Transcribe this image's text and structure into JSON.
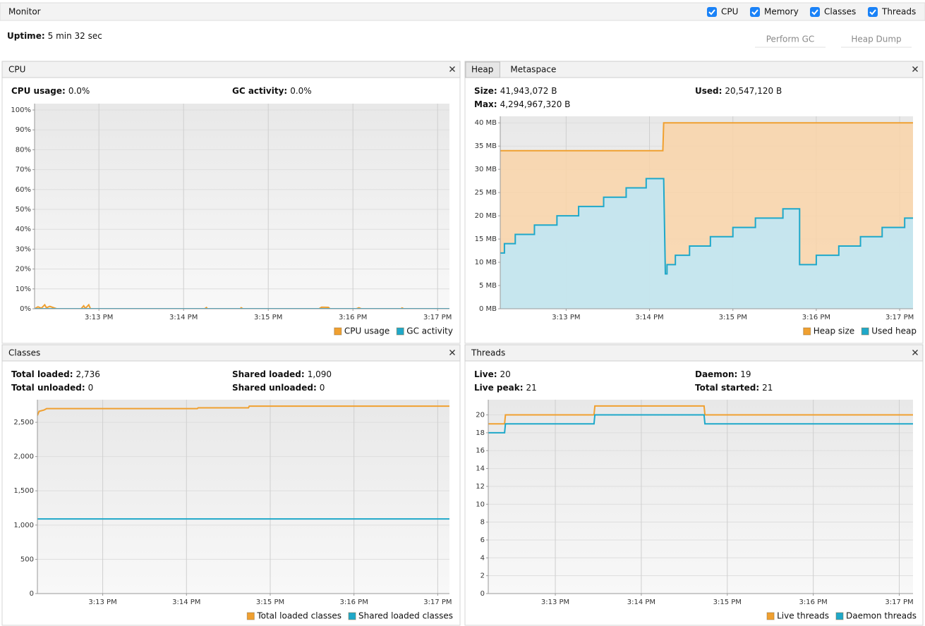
{
  "header": {
    "title": "Monitor",
    "checkboxes": [
      "CPU",
      "Memory",
      "Classes",
      "Threads"
    ],
    "uptime_label": "Uptime:",
    "uptime": "5 min 32 sec",
    "buttons": [
      "Perform GC",
      "Heap Dump"
    ]
  },
  "chart_data": [
    {
      "type": "line",
      "title": "CPU",
      "stats": [
        {
          "label": "CPU usage:",
          "value": "0.0%"
        },
        {
          "label": "GC activity:",
          "value": "0.0%"
        }
      ],
      "xlim": [
        12.24,
        17.14
      ],
      "xticks": [
        {
          "value": 13,
          "label": "3:13 PM"
        },
        {
          "value": 14,
          "label": "3:14 PM"
        },
        {
          "value": 15,
          "label": "3:15 PM"
        },
        {
          "value": 16,
          "label": "3:16 PM"
        },
        {
          "value": 17,
          "label": "3:17 PM"
        }
      ],
      "ylim": [
        0,
        103.2
      ],
      "yticks": [
        {
          "value": 0,
          "label": "0%"
        },
        {
          "value": 10,
          "label": "10%"
        },
        {
          "value": 20,
          "label": "20%"
        },
        {
          "value": 30,
          "label": "30%"
        },
        {
          "value": 40,
          "label": "40%"
        },
        {
          "value": 50,
          "label": "50%"
        },
        {
          "value": 60,
          "label": "60%"
        },
        {
          "value": 70,
          "label": "70%"
        },
        {
          "value": 80,
          "label": "80%"
        },
        {
          "value": 90,
          "label": "90%"
        },
        {
          "value": 100,
          "label": "100%"
        }
      ],
      "grid": true,
      "series": [
        {
          "name": "CPU usage",
          "color": "#f0a030",
          "x": [
            12.24,
            12.28,
            12.32,
            12.36,
            12.38,
            12.42,
            12.5,
            12.79,
            12.82,
            12.84,
            12.88,
            12.9,
            14.25,
            14.27,
            14.28,
            14.67,
            14.68,
            14.7,
            15.6,
            15.63,
            15.71,
            15.73,
            16.04,
            16.07,
            16.1,
            16.57,
            16.58,
            16.6,
            17.14
          ],
          "values": [
            0,
            1,
            0.3,
            2,
            0.5,
            1.2,
            0,
            0,
            1.5,
            0.2,
            2,
            0,
            0,
            0.6,
            0,
            0,
            0.5,
            0,
            0,
            0.8,
            0.7,
            0,
            0,
            0.5,
            0,
            0,
            0.4,
            0,
            0
          ]
        },
        {
          "name": "GC activity",
          "color": "#1fa8c9",
          "x": [
            12.24,
            17.14
          ],
          "values": [
            0,
            0
          ]
        }
      ]
    },
    {
      "type": "area",
      "tabs": [
        "Heap",
        "Metaspace"
      ],
      "stats": [
        {
          "label": "Size:",
          "value": "41,943,072 B"
        },
        {
          "label": "Used:",
          "value": "20,547,120 B"
        },
        {
          "label": "Max:",
          "value": "4,294,967,320 B"
        }
      ],
      "xlim": [
        12.21,
        17.16
      ],
      "xticks": [
        {
          "value": 13,
          "label": "3:13 PM"
        },
        {
          "value": 14,
          "label": "3:14 PM"
        },
        {
          "value": 15,
          "label": "3:15 PM"
        },
        {
          "value": 16,
          "label": "3:16 PM"
        },
        {
          "value": 17,
          "label": "3:17 PM"
        }
      ],
      "ylim": [
        0,
        41.4
      ],
      "yticks": [
        {
          "value": 0,
          "label": "0 MB"
        },
        {
          "value": 5,
          "label": "5 MB"
        },
        {
          "value": 10,
          "label": "10 MB"
        },
        {
          "value": 15,
          "label": "15 MB"
        },
        {
          "value": 20,
          "label": "20 MB"
        },
        {
          "value": 25,
          "label": "25 MB"
        },
        {
          "value": 30,
          "label": "30 MB"
        },
        {
          "value": 35,
          "label": "35 MB"
        },
        {
          "value": 40,
          "label": "40 MB"
        }
      ],
      "grid": true,
      "series": [
        {
          "name": "Heap size",
          "color": "#f0a030",
          "fill_color": "#f9d3a8",
          "x": [
            12.21,
            14.16,
            14.17,
            17.16
          ],
          "values": [
            34,
            34,
            40,
            40
          ]
        },
        {
          "name": "Used heap",
          "color": "#1fa8c9",
          "fill_color": "#bde8f8",
          "x": [
            12.21,
            12.26,
            12.26,
            12.39,
            12.39,
            12.62,
            12.62,
            12.89,
            12.89,
            13.15,
            13.15,
            13.45,
            13.45,
            13.72,
            13.72,
            13.96,
            13.96,
            14.17,
            14.19,
            14.21,
            14.21,
            14.31,
            14.31,
            14.48,
            14.48,
            14.73,
            14.73,
            15.0,
            15.0,
            15.27,
            15.27,
            15.6,
            15.6,
            15.8,
            15.8,
            16.0,
            16.0,
            16.27,
            16.27,
            16.53,
            16.53,
            16.79,
            16.79,
            17.06,
            17.06,
            17.16
          ],
          "values": [
            12,
            12,
            14,
            14,
            16,
            16,
            18,
            18,
            20,
            20,
            22,
            22,
            24,
            24,
            26,
            26,
            28,
            28,
            7.5,
            7.5,
            9.5,
            9.5,
            11.5,
            11.5,
            13.5,
            13.5,
            15.5,
            15.5,
            17.5,
            17.5,
            19.5,
            19.5,
            21.5,
            21.5,
            9.5,
            9.5,
            11.5,
            11.5,
            13.5,
            13.5,
            15.5,
            15.5,
            17.5,
            17.5,
            19.5,
            19.5
          ]
        }
      ]
    },
    {
      "type": "line",
      "title": "Classes",
      "stats": [
        {
          "label": "Total loaded:",
          "value": "2,736"
        },
        {
          "label": "Shared loaded:",
          "value": "1,090"
        },
        {
          "label": "Total unloaded:",
          "value": "0"
        },
        {
          "label": "Shared unloaded:",
          "value": "0"
        }
      ],
      "xlim": [
        12.22,
        17.14
      ],
      "xticks": [
        {
          "value": 13,
          "label": "3:13 PM"
        },
        {
          "value": 14,
          "label": "3:14 PM"
        },
        {
          "value": 15,
          "label": "3:15 PM"
        },
        {
          "value": 16,
          "label": "3:16 PM"
        },
        {
          "value": 17,
          "label": "3:17 PM"
        }
      ],
      "ylim": [
        0,
        2830
      ],
      "yticks": [
        0,
        500,
        {
          "value": 1000,
          "label": "1,000"
        },
        {
          "value": 1500,
          "label": "1,500"
        },
        {
          "value": 2000,
          "label": "2,000"
        },
        {
          "value": 2500,
          "label": "2,500"
        }
      ],
      "grid": true,
      "series": [
        {
          "name": "Total loaded classes",
          "color": "#f0a030",
          "x": [
            12.22,
            12.24,
            12.3,
            12.33,
            14.13,
            14.14,
            14.74,
            14.75,
            17.14
          ],
          "values": [
            2600,
            2660,
            2680,
            2700,
            2700,
            2712,
            2712,
            2736,
            2736
          ]
        },
        {
          "name": "Shared loaded classes",
          "color": "#1fa8c9",
          "x": [
            12.22,
            17.14
          ],
          "values": [
            1090,
            1090
          ]
        }
      ]
    },
    {
      "type": "line",
      "title": "Threads",
      "stats": [
        {
          "label": "Live:",
          "value": "20"
        },
        {
          "label": "Daemon:",
          "value": "19"
        },
        {
          "label": "Live peak:",
          "value": "21"
        },
        {
          "label": "Total started:",
          "value": "21"
        }
      ],
      "xlim": [
        12.22,
        17.16
      ],
      "xticks": [
        {
          "value": 13,
          "label": "3:13 PM"
        },
        {
          "value": 14,
          "label": "3:14 PM"
        },
        {
          "value": 15,
          "label": "3:15 PM"
        },
        {
          "value": 16,
          "label": "3:16 PM"
        },
        {
          "value": 17,
          "label": "3:17 PM"
        }
      ],
      "ylim": [
        0,
        21.7
      ],
      "yticks": [
        0,
        2,
        4,
        6,
        8,
        10,
        12,
        14,
        16,
        18,
        20
      ],
      "grid": true,
      "series": [
        {
          "name": "Live threads",
          "color": "#f0a030",
          "x": [
            12.22,
            12.41,
            12.42,
            13.45,
            13.46,
            14.73,
            14.74,
            17.16
          ],
          "values": [
            19,
            19,
            20,
            20,
            21,
            21,
            20,
            20
          ]
        },
        {
          "name": "Daemon threads",
          "color": "#1fa8c9",
          "x": [
            12.22,
            12.41,
            12.42,
            13.45,
            13.46,
            14.73,
            14.74,
            17.16
          ],
          "values": [
            18,
            18,
            19,
            19,
            20,
            20,
            19,
            19
          ]
        }
      ]
    }
  ]
}
